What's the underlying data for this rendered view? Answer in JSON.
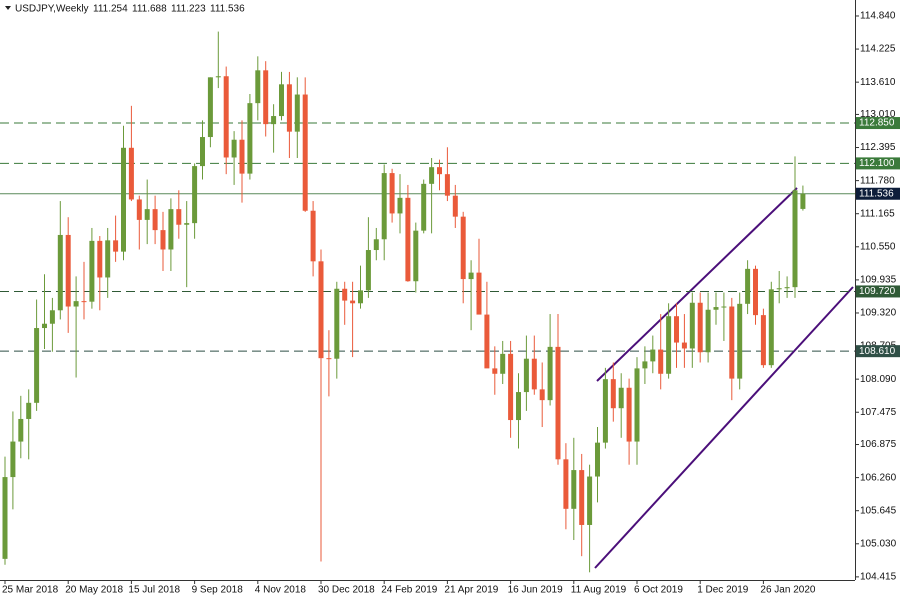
{
  "chart_data": {
    "type": "candlestick",
    "symbol": "USDJPY,Weekly",
    "categories": [
      "25 Mar 2018",
      null,
      null,
      null,
      null,
      null,
      null,
      null,
      "20 May 2018",
      null,
      null,
      null,
      null,
      null,
      null,
      null,
      "15 Jul 2018",
      null,
      null,
      null,
      null,
      null,
      null,
      null,
      "9 Sep 2018",
      null,
      null,
      null,
      null,
      null,
      null,
      null,
      "4 Nov 2018",
      null,
      null,
      null,
      null,
      null,
      null,
      null,
      "30 Dec 2018",
      null,
      null,
      null,
      null,
      null,
      null,
      null,
      "24 Feb 2019",
      null,
      null,
      null,
      null,
      null,
      null,
      null,
      "21 Apr 2019",
      null,
      null,
      null,
      null,
      null,
      null,
      null,
      "16 Jun 2019",
      null,
      null,
      null,
      null,
      null,
      null,
      null,
      "11 Aug 2019",
      null,
      null,
      null,
      null,
      null,
      null,
      null,
      "6 Oct 2019",
      null,
      null,
      null,
      null,
      null,
      null,
      null,
      "1 Dec 2019",
      null,
      null,
      null,
      null,
      null,
      null,
      null,
      "26 Jan 2020",
      null,
      null,
      null,
      null,
      null
    ],
    "open": [
      104.75,
      106.27,
      106.93,
      107.35,
      107.65,
      109.04,
      109.12,
      109.37,
      110.77,
      109.44,
      109.54,
      109.53,
      110.66,
      109.98,
      110.67,
      110.46,
      112.39,
      111.43,
      111.05,
      111.25,
      110.86,
      110.5,
      111.25,
      110.96,
      110.99,
      112.05,
      112.59,
      113.7,
      113.72,
      112.21,
      112.54,
      111.91,
      113.22,
      113.83,
      112.83,
      112.98,
      113.57,
      112.69,
      113.38,
      111.22,
      110.28,
      108.48,
      108.47,
      109.77,
      109.55,
      109.5,
      109.74,
      110.49,
      110.69,
      111.92,
      111.17,
      111.46,
      109.91,
      110.85,
      111.72,
      112.03,
      111.9,
      111.5,
      111.11,
      109.95,
      110.07,
      109.29,
      108.29,
      108.19,
      108.56,
      107.33,
      107.85,
      108.47,
      107.9,
      107.7,
      108.69,
      106.6,
      105.68,
      106.4,
      105.38,
      106.28,
      106.91,
      108.09,
      107.55,
      107.93,
      106.93,
      108.29,
      108.42,
      108.64,
      108.19,
      109.26,
      108.77,
      108.66,
      109.51,
      108.59,
      109.38,
      109.43,
      109.44,
      108.1,
      109.49,
      110.14,
      109.28,
      108.35,
      109.76,
      109.78,
      109.8,
      111.254
    ],
    "high": [
      106.65,
      107.49,
      107.78,
      107.9,
      109.57,
      110.04,
      109.6,
      111.4,
      111.1,
      110.0,
      110.27,
      110.9,
      110.75,
      110.9,
      111.13,
      112.8,
      113.17,
      111.5,
      111.8,
      111.5,
      111.2,
      111.45,
      111.6,
      111.4,
      112.1,
      112.9,
      113.7,
      114.55,
      113.9,
      112.7,
      112.9,
      113.39,
      114.09,
      114.0,
      113.2,
      113.8,
      113.8,
      113.7,
      113.7,
      111.4,
      110.5,
      109.0,
      109.9,
      109.9,
      109.9,
      110.2,
      111.1,
      110.9,
      112.08,
      112.0,
      111.9,
      111.7,
      111.0,
      111.8,
      112.2,
      112.17,
      112.4,
      111.7,
      111.2,
      110.3,
      110.7,
      109.9,
      108.7,
      108.8,
      108.8,
      108.2,
      108.9,
      108.9,
      108.4,
      109.3,
      109.3,
      106.9,
      107.0,
      106.7,
      106.5,
      107.2,
      108.3,
      108.4,
      108.2,
      108.1,
      108.5,
      108.7,
      108.9,
      109.3,
      109.5,
      109.5,
      109.3,
      109.7,
      109.7,
      109.7,
      109.7,
      109.7,
      109.6,
      109.7,
      110.3,
      110.2,
      109.4,
      109.9,
      110.1,
      110.0,
      112.23,
      111.688
    ],
    "low": [
      104.64,
      105.67,
      106.62,
      106.6,
      107.5,
      108.65,
      108.6,
      109.2,
      108.95,
      108.12,
      109.2,
      109.4,
      109.37,
      109.6,
      110.27,
      110.3,
      111.4,
      110.5,
      110.6,
      110.6,
      110.1,
      110.1,
      110.7,
      109.8,
      110.7,
      111.8,
      112.4,
      113.5,
      111.9,
      111.7,
      111.37,
      111.8,
      112.9,
      112.6,
      112.3,
      112.9,
      112.2,
      112.2,
      111.2,
      110.0,
      104.7,
      107.77,
      108.1,
      109.1,
      108.5,
      109.4,
      109.6,
      110.3,
      110.3,
      111.0,
      110.8,
      109.9,
      109.7,
      110.8,
      110.8,
      111.6,
      111.4,
      110.9,
      109.5,
      109.0,
      109.3,
      108.3,
      107.8,
      108.0,
      107.0,
      106.8,
      107.5,
      107.8,
      107.2,
      107.6,
      106.5,
      105.3,
      105.1,
      104.8,
      104.5,
      105.8,
      106.8,
      107.3,
      107.0,
      106.5,
      106.5,
      108.0,
      108.2,
      107.9,
      108.1,
      108.3,
      108.3,
      108.3,
      108.4,
      108.4,
      109.1,
      108.8,
      107.7,
      107.9,
      109.3,
      109.1,
      108.3,
      108.3,
      109.5,
      109.6,
      109.6,
      111.223
    ],
    "close": [
      106.27,
      106.93,
      107.35,
      107.65,
      109.04,
      109.12,
      109.37,
      110.77,
      109.44,
      109.54,
      109.53,
      110.66,
      109.98,
      110.67,
      110.46,
      112.39,
      111.43,
      111.05,
      111.25,
      110.86,
      110.5,
      111.25,
      110.96,
      110.99,
      112.05,
      112.59,
      113.7,
      113.72,
      112.21,
      112.54,
      111.91,
      113.22,
      113.83,
      112.83,
      112.98,
      113.57,
      112.69,
      113.38,
      111.22,
      110.28,
      108.48,
      108.47,
      109.77,
      109.55,
      109.5,
      109.74,
      110.49,
      110.69,
      111.92,
      111.17,
      111.46,
      109.91,
      110.85,
      111.72,
      112.03,
      111.9,
      111.5,
      111.11,
      109.95,
      110.07,
      109.29,
      108.29,
      108.19,
      108.56,
      107.33,
      107.85,
      108.47,
      107.9,
      107.7,
      108.69,
      106.6,
      105.68,
      106.4,
      105.38,
      106.28,
      106.91,
      108.09,
      107.55,
      107.93,
      106.93,
      108.29,
      108.42,
      108.64,
      108.19,
      109.26,
      108.77,
      108.66,
      109.51,
      108.59,
      109.38,
      109.43,
      109.44,
      108.1,
      109.49,
      110.14,
      109.28,
      108.35,
      109.76,
      109.78,
      109.8,
      111.6,
      111.536
    ],
    "up_color": "#6b9a3a",
    "down_color": "#ea5a3a",
    "ylim": [
      104.357,
      115.137
    ],
    "yticks": [
      {
        "value": 114.84,
        "label": "114.840"
      },
      114.225,
      {
        "value": 113.61,
        "label": "113.610"
      },
      {
        "value": 113.01,
        "label": "113.010"
      },
      112.395,
      {
        "value": 111.78,
        "label": "111.780"
      },
      111.165,
      {
        "value": 110.55,
        "label": "110.550"
      },
      109.935,
      {
        "value": 109.32,
        "label": "109.320"
      },
      108.705,
      {
        "value": 108.09,
        "label": "108.090"
      },
      107.475,
      106.875,
      {
        "value": 106.26,
        "label": "106.260"
      },
      105.645,
      {
        "value": 105.03,
        "label": "105.030"
      },
      104.415
    ],
    "levels": [
      {
        "value": 112.85,
        "label": "112.850",
        "color": "#3a7a3a"
      },
      {
        "value": 112.1,
        "label": "112.100",
        "color": "#3a7a3a"
      },
      {
        "value": 109.72,
        "label": "109.720",
        "color": "#2f5a36"
      },
      {
        "value": 108.61,
        "label": "108.610",
        "color": "#2f4f46"
      }
    ],
    "price_color": "#0d1d3a",
    "grid": false
  }
}
